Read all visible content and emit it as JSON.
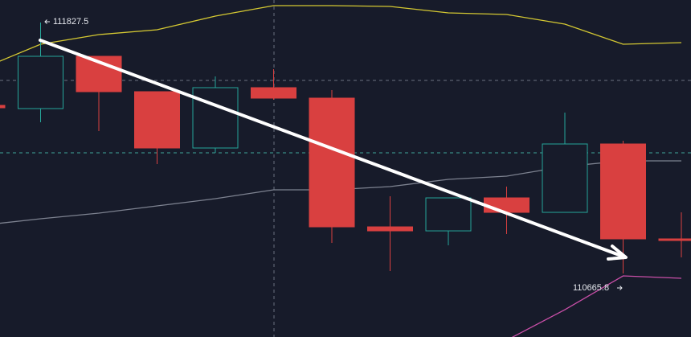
{
  "chart_data": {
    "type": "candlestick",
    "ylim": [
      110371.8,
      111931.7
    ],
    "up_color": "#26a69a",
    "down_color": "#d94040",
    "open": [
      111444.0,
      111429.1,
      111671.1,
      111507.3,
      111246.7,
      111525.9,
      111477.5,
      110881.7,
      110863.1,
      111015.8,
      110948.8,
      111265.3,
      110826.0
    ],
    "high": [
      111444.0,
      111827.5,
      111671.1,
      111507.3,
      111578.0,
      111611.5,
      111514.7,
      111023.3,
      111015.8,
      111068.0,
      111410.5,
      111280.2,
      110948.8
    ],
    "low": [
      111432.8,
      111365.8,
      111324.8,
      111172.2,
      111224.3,
      111470.0,
      110807.3,
      110677.0,
      110796.1,
      110848.3,
      110948.8,
      110665.8,
      110740.3
    ],
    "close": [
      111432.8,
      111671.1,
      111507.3,
      111246.7,
      111525.9,
      111477.5,
      110881.7,
      110863.1,
      111015.8,
      110948.8,
      111265.3,
      110826.0,
      110818.5
    ],
    "bands": [
      {
        "color": "#d4c832",
        "values": [
          111615.2,
          111726.9,
          111771.6,
          111794.0,
          111857.2,
          111905.6,
          111905.6,
          111901.9,
          111872.1,
          111864.7,
          111820.0,
          111726.9,
          111734.4
        ]
      },
      {
        "color": "#7d8290",
        "values": [
          110889.3,
          110919.1,
          110945.1,
          110978.6,
          111012.1,
          111053.1,
          111053.1,
          111068.0,
          111101.5,
          111116.3,
          111161.0,
          111187.1,
          111187.1
        ]
      },
      {
        "color": "#c94fa8",
        "values": [
          null,
          null,
          null,
          null,
          null,
          null,
          null,
          null,
          null,
          110356.9,
          110498.2,
          110654.6,
          110643.5
        ]
      }
    ],
    "annotations": [
      "111827.5",
      "110665.8"
    ]
  }
}
